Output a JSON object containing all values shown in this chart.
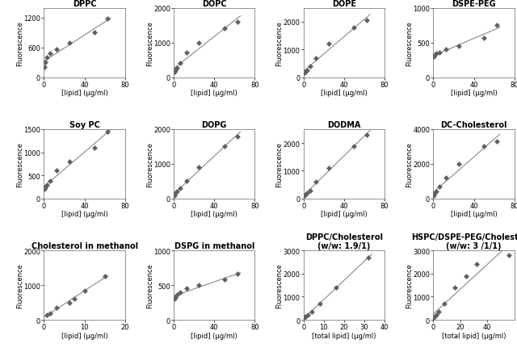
{
  "subplots": [
    {
      "title": "DPPC",
      "xlabel": "[lipid] (μg/ml)",
      "ylabel": "Fluorescence",
      "x": [
        0.78,
        1.56,
        3.125,
        6.25,
        12.5,
        25,
        50,
        62.5
      ],
      "y": [
        200,
        300,
        400,
        480,
        560,
        700,
        900,
        1175
      ],
      "xlim": [
        0,
        80
      ],
      "ylim": [
        0,
        1400
      ],
      "yticks": [
        0,
        600,
        1200
      ],
      "xticks": [
        0,
        40,
        80
      ],
      "row": 0,
      "col": 0
    },
    {
      "title": "DOPC",
      "xlabel": "[lipid] (μg/ml)",
      "ylabel": "Fluorescence",
      "x": [
        0.78,
        1.56,
        3.125,
        6.25,
        12.5,
        25,
        50,
        62.5
      ],
      "y": [
        150,
        200,
        280,
        400,
        700,
        1000,
        1400,
        1600
      ],
      "xlim": [
        0,
        80
      ],
      "ylim": [
        0,
        2000
      ],
      "yticks": [
        0,
        1000,
        2000
      ],
      "xticks": [
        0,
        40,
        80
      ],
      "row": 0,
      "col": 1
    },
    {
      "title": "DOPE",
      "xlabel": "[lipid] (μg/ml)",
      "ylabel": "Fluorescence",
      "x": [
        0.78,
        1.56,
        3.125,
        6.25,
        12.5,
        25,
        50,
        62.5
      ],
      "y": [
        150,
        200,
        250,
        400,
        700,
        1200,
        1800,
        2050
      ],
      "xlim": [
        0,
        80
      ],
      "ylim": [
        0,
        2500
      ],
      "yticks": [
        0,
        1000,
        2000
      ],
      "xticks": [
        0,
        40,
        80
      ],
      "row": 0,
      "col": 2
    },
    {
      "title": "DSPE-PEG",
      "xlabel": "[lipid] (μg/ml)",
      "ylabel": "Fluorescence",
      "x": [
        0.78,
        1.56,
        3.125,
        6.25,
        12.5,
        25,
        50,
        62.5
      ],
      "y": [
        300,
        320,
        340,
        360,
        400,
        450,
        560,
        750
      ],
      "xlim": [
        0,
        80
      ],
      "ylim": [
        0,
        1000
      ],
      "yticks": [
        0,
        500,
        1000
      ],
      "xticks": [
        0,
        40,
        80
      ],
      "row": 0,
      "col": 3
    },
    {
      "title": "Soy PC",
      "xlabel": "[lipid] (μg/ml)",
      "ylabel": "Fluorescence",
      "x": [
        0.78,
        1.56,
        3.125,
        6.25,
        12.5,
        25,
        50,
        62.5
      ],
      "y": [
        200,
        250,
        300,
        380,
        600,
        800,
        1100,
        1450
      ],
      "xlim": [
        0,
        80
      ],
      "ylim": [
        0,
        1500
      ],
      "yticks": [
        0,
        500,
        1000,
        1500
      ],
      "xticks": [
        0,
        40,
        80
      ],
      "row": 1,
      "col": 0
    },
    {
      "title": "DOPG",
      "xlabel": "[lipid] (μg/ml)",
      "ylabel": "Fluorescence",
      "x": [
        0.78,
        1.56,
        3.125,
        6.25,
        12.5,
        25,
        50,
        62.5
      ],
      "y": [
        100,
        150,
        200,
        300,
        500,
        900,
        1500,
        1800
      ],
      "xlim": [
        0,
        80
      ],
      "ylim": [
        0,
        2000
      ],
      "yticks": [
        0,
        1000,
        2000
      ],
      "xticks": [
        0,
        40,
        80
      ],
      "row": 1,
      "col": 1
    },
    {
      "title": "DODMA",
      "xlabel": "[lipid] (μg/ml)",
      "ylabel": "Fluorescence",
      "x": [
        0.78,
        1.56,
        3.125,
        6.25,
        12.5,
        25,
        50,
        62.5
      ],
      "y": [
        100,
        150,
        200,
        300,
        600,
        1100,
        1900,
        2300
      ],
      "xlim": [
        0,
        80
      ],
      "ylim": [
        0,
        2500
      ],
      "yticks": [
        0,
        1000,
        2000
      ],
      "xticks": [
        0,
        40,
        80
      ],
      "row": 1,
      "col": 2
    },
    {
      "title": "DC-Cholesterol",
      "xlabel": "[lipid] (μg/ml)",
      "ylabel": "Fluorescence",
      "x": [
        0.78,
        1.56,
        3.125,
        6.25,
        12.5,
        25,
        50,
        62.5
      ],
      "y": [
        200,
        300,
        400,
        700,
        1200,
        2000,
        3000,
        3300
      ],
      "xlim": [
        0,
        80
      ],
      "ylim": [
        0,
        4000
      ],
      "yticks": [
        0,
        2000,
        4000
      ],
      "xticks": [
        0,
        40,
        80
      ],
      "row": 1,
      "col": 3
    },
    {
      "title": "Cholesterol in methanol",
      "xlabel": "[lipid] (μg/ml)",
      "ylabel": "Fluorescence",
      "x": [
        0.78,
        1.56,
        3.125,
        6.25,
        7.5,
        10,
        15
      ],
      "y": [
        150,
        200,
        350,
        500,
        600,
        850,
        1250
      ],
      "xlim": [
        0,
        20
      ],
      "ylim": [
        0,
        2000
      ],
      "yticks": [
        0,
        1000,
        2000
      ],
      "xticks": [
        0,
        10,
        20
      ],
      "row": 2,
      "col": 0
    },
    {
      "title": "DSPG in methanol",
      "xlabel": "[lipid] (μg/ml)",
      "ylabel": "Fluorescence",
      "x": [
        0.78,
        1.56,
        3.125,
        6.25,
        12.5,
        25,
        50,
        62.5
      ],
      "y": [
        300,
        330,
        360,
        400,
        450,
        500,
        580,
        660
      ],
      "xlim": [
        0,
        80
      ],
      "ylim": [
        0,
        1000
      ],
      "yticks": [
        0,
        500,
        1000
      ],
      "xticks": [
        0,
        40,
        80
      ],
      "row": 2,
      "col": 1
    },
    {
      "title": "DPPC/Cholesterol\n(w/w: 1.9/1)",
      "xlabel": "[total lipid] (μg/ml)",
      "ylabel": "Fluorescence",
      "x": [
        0.5,
        1,
        2,
        4,
        8,
        16,
        32
      ],
      "y": [
        100,
        150,
        200,
        350,
        700,
        1400,
        2700
      ],
      "xlim": [
        0,
        40
      ],
      "ylim": [
        0,
        3000
      ],
      "yticks": [
        0,
        1000,
        2000,
        3000
      ],
      "xticks": [
        0,
        10,
        20,
        30,
        40
      ],
      "row": 2,
      "col": 2
    },
    {
      "title": "HSPC/DSPE-PEG/Cholesterol\n(w/w: 3 /1/1)",
      "xlabel": "[total lipid] (μg/ml)",
      "ylabel": "Fluorescence",
      "x": [
        0.5,
        1,
        2,
        4,
        8,
        16,
        24,
        32,
        56
      ],
      "y": [
        100,
        150,
        200,
        350,
        700,
        1400,
        1900,
        2400,
        2800
      ],
      "xlim": [
        0,
        60
      ],
      "ylim": [
        0,
        3000
      ],
      "yticks": [
        0,
        1000,
        2000,
        3000
      ],
      "xticks": [
        0,
        20,
        40
      ],
      "row": 2,
      "col": 3
    }
  ],
  "marker": "D",
  "marker_size": 3.5,
  "marker_color": "#606060",
  "line_color": "#888888",
  "line_width": 0.8,
  "title_fontsize": 7,
  "label_fontsize": 6,
  "tick_fontsize": 6,
  "bg_color": "#ffffff",
  "border_color": "#aaaaaa"
}
